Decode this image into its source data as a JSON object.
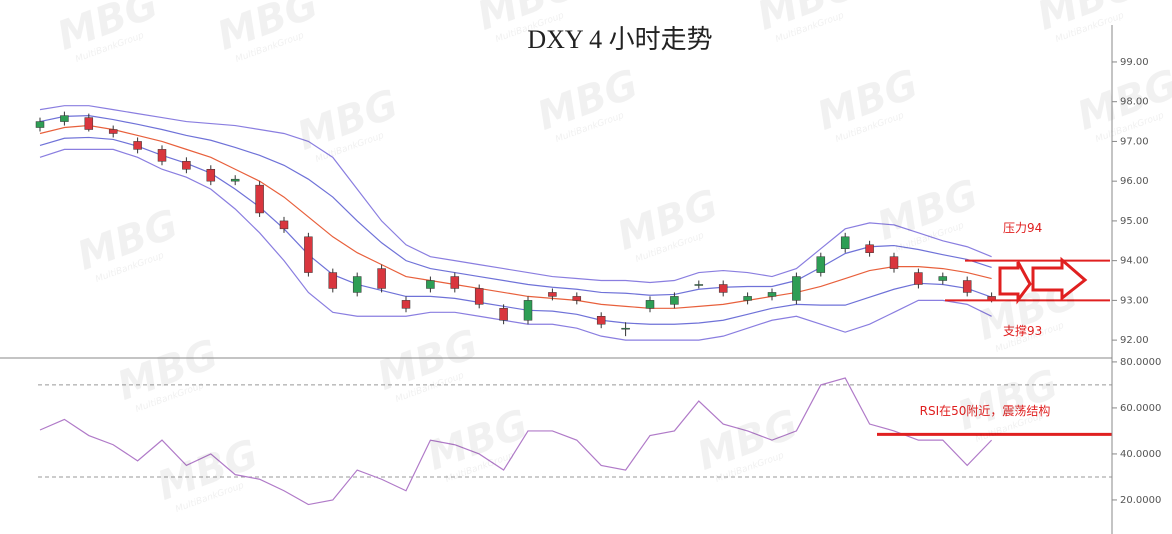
{
  "watermark": "MBG",
  "watermark_sub": "MultiBankGroup",
  "chart_data": [
    {
      "type": "candlestick",
      "title": "DXY 4 小时走势",
      "up_color": "#2e9e55",
      "down_color": "#d9363e",
      "open": [
        97.35,
        97.5,
        97.6,
        97.3,
        97.0,
        96.8,
        96.5,
        96.3,
        96.0,
        95.9,
        95.0,
        94.6,
        93.7,
        93.2,
        93.8,
        93.0,
        93.3,
        93.6,
        93.3,
        92.8,
        92.5,
        93.2,
        93.1,
        92.6,
        92.3,
        92.8,
        92.9,
        93.4,
        93.4,
        93.0,
        93.1,
        93.0,
        93.7,
        94.3,
        94.4,
        94.1,
        93.7,
        93.5,
        93.5,
        93.1
      ],
      "high": [
        97.6,
        97.75,
        97.7,
        97.4,
        97.1,
        96.9,
        96.6,
        96.4,
        96.15,
        96.0,
        95.1,
        94.7,
        93.8,
        93.7,
        93.9,
        93.1,
        93.6,
        93.7,
        93.4,
        92.9,
        93.1,
        93.3,
        93.2,
        92.7,
        92.45,
        93.1,
        93.2,
        93.5,
        93.5,
        93.2,
        93.3,
        93.7,
        94.2,
        94.7,
        94.5,
        94.2,
        93.8,
        93.7,
        93.6,
        93.2
      ],
      "low": [
        97.25,
        97.4,
        97.25,
        97.1,
        96.7,
        96.4,
        96.2,
        95.9,
        95.9,
        95.1,
        94.7,
        93.6,
        93.2,
        93.1,
        93.2,
        92.7,
        93.2,
        93.2,
        92.8,
        92.4,
        92.4,
        93.0,
        92.9,
        92.3,
        92.1,
        92.7,
        92.8,
        93.3,
        93.1,
        92.9,
        93.0,
        92.9,
        93.6,
        94.2,
        94.1,
        93.7,
        93.3,
        93.4,
        93.1,
        92.95
      ],
      "close": [
        97.5,
        97.65,
        97.3,
        97.2,
        96.8,
        96.5,
        96.3,
        96.0,
        96.05,
        95.2,
        94.8,
        93.7,
        93.3,
        93.6,
        93.3,
        92.8,
        93.5,
        93.3,
        92.9,
        92.5,
        93.0,
        93.1,
        93.0,
        92.4,
        92.3,
        93.0,
        93.1,
        93.4,
        93.2,
        93.1,
        93.2,
        93.6,
        94.1,
        94.6,
        94.2,
        93.8,
        93.4,
        93.6,
        93.2,
        93.0
      ],
      "bands": [
        {
          "color": "#8a7ee0",
          "values": [
            97.8,
            97.9,
            97.9,
            97.8,
            97.7,
            97.6,
            97.5,
            97.45,
            97.4,
            97.3,
            97.2,
            97.0,
            96.6,
            95.8,
            95.0,
            94.4,
            94.1,
            94.0,
            93.9,
            93.8,
            93.7,
            93.6,
            93.55,
            93.5,
            93.5,
            93.45,
            93.5,
            93.7,
            93.75,
            93.7,
            93.6,
            93.8,
            94.3,
            94.8,
            94.95,
            94.9,
            94.7,
            94.5,
            94.35,
            94.1
          ]
        },
        {
          "color": "#6f72d8",
          "values": [
            97.5,
            97.63,
            97.65,
            97.55,
            97.43,
            97.3,
            97.15,
            97.03,
            96.85,
            96.65,
            96.4,
            96.05,
            95.6,
            95.0,
            94.45,
            94.0,
            93.8,
            93.7,
            93.6,
            93.5,
            93.4,
            93.33,
            93.28,
            93.2,
            93.18,
            93.13,
            93.15,
            93.28,
            93.33,
            93.35,
            93.35,
            93.5,
            93.83,
            94.18,
            94.35,
            94.38,
            94.28,
            94.15,
            94.03,
            93.83
          ]
        },
        {
          "color": "#e8603c",
          "values": [
            97.2,
            97.35,
            97.4,
            97.3,
            97.15,
            97.0,
            96.8,
            96.6,
            96.3,
            96.0,
            95.6,
            95.1,
            94.6,
            94.2,
            93.9,
            93.6,
            93.5,
            93.4,
            93.3,
            93.2,
            93.1,
            93.05,
            93.0,
            92.9,
            92.85,
            92.8,
            92.8,
            92.85,
            92.9,
            93.0,
            93.1,
            93.2,
            93.35,
            93.55,
            93.75,
            93.85,
            93.85,
            93.8,
            93.7,
            93.55
          ]
        },
        {
          "color": "#6f72d8",
          "values": [
            96.9,
            97.08,
            97.1,
            97.05,
            96.88,
            96.65,
            96.45,
            96.2,
            95.8,
            95.35,
            94.8,
            94.15,
            93.65,
            93.4,
            93.25,
            93.1,
            93.1,
            93.05,
            92.95,
            92.85,
            92.75,
            92.73,
            92.65,
            92.5,
            92.43,
            92.4,
            92.4,
            92.43,
            92.5,
            92.65,
            92.8,
            92.9,
            92.88,
            92.88,
            93.08,
            93.28,
            93.43,
            93.4,
            93.3,
            93.08
          ]
        },
        {
          "color": "#8a7ee0",
          "values": [
            96.6,
            96.8,
            96.8,
            96.8,
            96.6,
            96.3,
            96.1,
            95.8,
            95.3,
            94.7,
            94.0,
            93.2,
            92.7,
            92.6,
            92.6,
            92.6,
            92.7,
            92.7,
            92.6,
            92.5,
            92.4,
            92.4,
            92.3,
            92.1,
            92.0,
            92.0,
            92.0,
            92.0,
            92.1,
            92.3,
            92.5,
            92.6,
            92.4,
            92.2,
            92.4,
            92.7,
            93.0,
            93.0,
            92.9,
            92.6
          ]
        }
      ],
      "ylim": [
        91.55,
        99.93
      ],
      "yticks": [
        {
          "value": 92,
          "label": "92.00"
        },
        {
          "value": 93,
          "label": "93.00"
        },
        {
          "value": 94,
          "label": "94.00"
        },
        {
          "value": 95,
          "label": "95.00"
        },
        {
          "value": 96,
          "label": "96.00"
        },
        {
          "value": 97,
          "label": "97.00"
        },
        {
          "value": 98,
          "label": "98.00"
        },
        {
          "value": 99,
          "label": "99.00"
        }
      ],
      "annotations": [
        {
          "text": "压力94",
          "value": 94,
          "color": "#e02020"
        },
        {
          "text": "支撑93",
          "value": 93,
          "color": "#e02020"
        }
      ]
    },
    {
      "type": "line",
      "color": "#b07ac8",
      "values": [
        50.4,
        55,
        48,
        44,
        37,
        46,
        35,
        40,
        31,
        29,
        24,
        18,
        20,
        33,
        29,
        24,
        46,
        44,
        40,
        33,
        50,
        50,
        46,
        35,
        33,
        48,
        50,
        63,
        53,
        50,
        46,
        50,
        70,
        73,
        53,
        50,
        46,
        46,
        35,
        46
      ],
      "ylim": [
        5.2,
        81.7
      ],
      "yticks": [
        {
          "value": 20,
          "label": "20.0000"
        },
        {
          "value": 40,
          "label": "40.0000"
        },
        {
          "value": 60,
          "label": "60.0000"
        },
        {
          "value": 80,
          "label": "80.0000"
        }
      ],
      "levels": [
        70,
        30
      ],
      "annotations": [
        {
          "text": "RSI在50附近，震荡结构",
          "value": 48.5,
          "color": "#e02020"
        }
      ]
    }
  ]
}
